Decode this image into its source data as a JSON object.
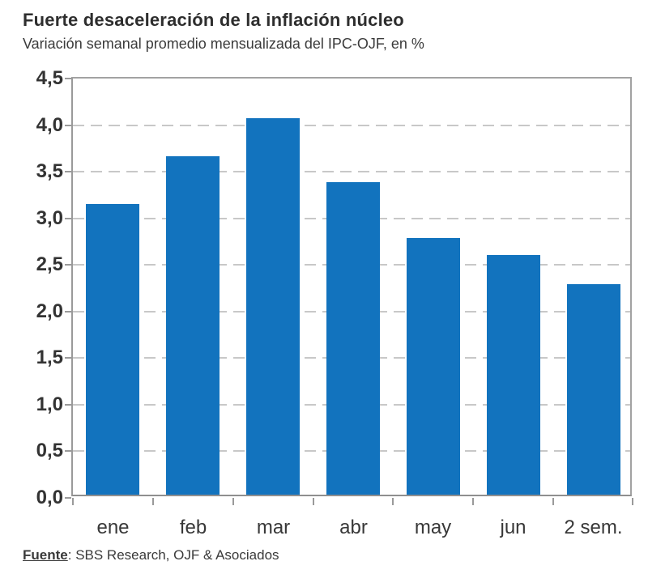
{
  "header": {
    "title": "Fuerte desaceleración de la inflación núcleo",
    "subtitle": "Variación semanal promedio mensualizada del IPC-OJF, en %"
  },
  "footer": {
    "source_label": "Fuente",
    "source_separator": ": ",
    "source_text": "SBS Research, OJF & Asociados"
  },
  "chart_data": {
    "type": "bar",
    "title": "Fuerte desaceleración de la inflación núcleo",
    "subtitle": "Variación semanal promedio mensualizada del IPC-OJF, en %",
    "categories": [
      "ene",
      "feb",
      "mar",
      "abr",
      "may",
      "jun",
      "2 sem."
    ],
    "values": [
      3.12,
      3.63,
      4.04,
      3.35,
      2.75,
      2.57,
      2.26
    ],
    "xlabel": "",
    "ylabel": "",
    "ylim": [
      0,
      4.5
    ],
    "y_tick_step": 0.5,
    "y_tick_labels": [
      "0,0",
      "0,5",
      "1,0",
      "1,5",
      "2,0",
      "2,5",
      "3,0",
      "3,5",
      "4,0",
      "4,5"
    ],
    "decimal_separator": ",",
    "grid": "horizontal-dashed",
    "legend": "none",
    "source": "Fuente: SBS Research, OJF & Asociados",
    "colors": {
      "bar": "#1273BE",
      "grid": "#c8c8c8",
      "plot_border": "#a2a2a2",
      "axis_text": "#333333",
      "title_text": "#2e2e2e"
    }
  }
}
